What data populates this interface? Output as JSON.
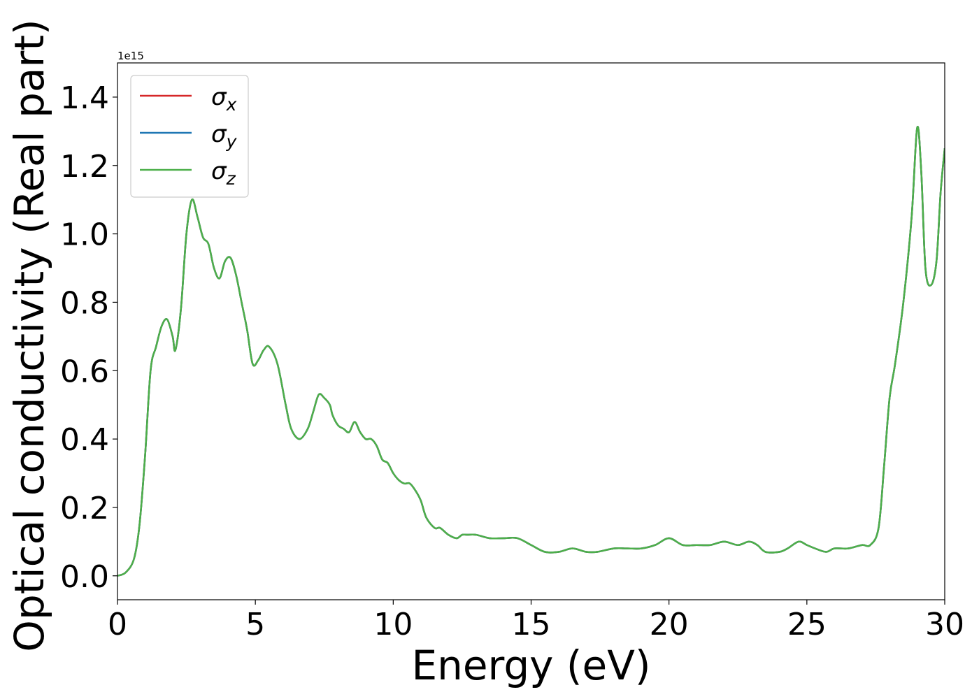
{
  "chart_data": {
    "type": "line",
    "title": "",
    "xlabel": "Energy (eV)",
    "ylabel": "Optical conductivity (Real part)",
    "offset_text": "1e15",
    "xlim": [
      0,
      30
    ],
    "ylim": [
      -0.07,
      1.5
    ],
    "x_ticks": [
      0,
      5,
      10,
      15,
      20,
      25,
      30
    ],
    "x_tick_labels": [
      "0",
      "5",
      "10",
      "15",
      "20",
      "25",
      "30"
    ],
    "y_ticks": [
      0.0,
      0.2,
      0.4,
      0.6,
      0.8,
      1.0,
      1.2,
      1.4
    ],
    "y_tick_labels": [
      "0.0",
      "0.2",
      "0.4",
      "0.6",
      "0.8",
      "1.0",
      "1.2",
      "1.4"
    ],
    "grid": false,
    "legend_position": "top-left",
    "x": [
      0,
      0.3,
      0.6,
      0.8,
      1.0,
      1.2,
      1.4,
      1.6,
      1.8,
      2.0,
      2.1,
      2.3,
      2.5,
      2.7,
      2.9,
      3.1,
      3.3,
      3.5,
      3.7,
      3.9,
      4.1,
      4.3,
      4.5,
      4.7,
      4.9,
      5.1,
      5.3,
      5.5,
      5.8,
      6.1,
      6.3,
      6.6,
      6.9,
      7.1,
      7.3,
      7.5,
      7.7,
      7.8,
      8.0,
      8.2,
      8.4,
      8.6,
      8.8,
      9.0,
      9.2,
      9.4,
      9.6,
      9.8,
      10.0,
      10.2,
      10.4,
      10.6,
      10.8,
      11.0,
      11.2,
      11.5,
      11.7,
      12.0,
      12.3,
      12.5,
      12.7,
      13.0,
      13.5,
      14.0,
      14.5,
      15.0,
      15.5,
      16.0,
      16.5,
      17.0,
      17.4,
      18.0,
      18.5,
      19.0,
      19.5,
      20.0,
      20.5,
      21.0,
      21.5,
      22.0,
      22.5,
      22.9,
      23.2,
      23.5,
      24.0,
      24.3,
      24.7,
      25.0,
      25.3,
      25.7,
      26.0,
      26.5,
      27.0,
      27.3,
      27.6,
      27.8,
      28.0,
      28.2,
      28.5,
      28.8,
      29.0,
      29.15,
      29.3,
      29.5,
      29.7,
      29.85,
      30.0
    ],
    "series": [
      {
        "name": "σ_x",
        "color": "#d62728",
        "values": [
          0.0,
          0.01,
          0.05,
          0.15,
          0.35,
          0.6,
          0.67,
          0.73,
          0.75,
          0.7,
          0.66,
          0.78,
          1.0,
          1.1,
          1.05,
          0.99,
          0.97,
          0.9,
          0.87,
          0.92,
          0.93,
          0.88,
          0.8,
          0.72,
          0.62,
          0.63,
          0.66,
          0.67,
          0.62,
          0.5,
          0.43,
          0.4,
          0.43,
          0.48,
          0.53,
          0.52,
          0.5,
          0.47,
          0.44,
          0.43,
          0.42,
          0.45,
          0.42,
          0.4,
          0.4,
          0.38,
          0.34,
          0.33,
          0.3,
          0.28,
          0.27,
          0.27,
          0.25,
          0.22,
          0.17,
          0.14,
          0.14,
          0.12,
          0.11,
          0.12,
          0.12,
          0.12,
          0.11,
          0.11,
          0.11,
          0.09,
          0.07,
          0.07,
          0.08,
          0.07,
          0.07,
          0.08,
          0.08,
          0.08,
          0.09,
          0.11,
          0.09,
          0.09,
          0.09,
          0.1,
          0.09,
          0.1,
          0.09,
          0.07,
          0.07,
          0.08,
          0.1,
          0.09,
          0.08,
          0.07,
          0.08,
          0.08,
          0.09,
          0.09,
          0.14,
          0.32,
          0.52,
          0.62,
          0.8,
          1.05,
          1.31,
          1.18,
          0.9,
          0.85,
          0.92,
          1.12,
          1.25
        ]
      },
      {
        "name": "σ_y",
        "color": "#1f77b4",
        "values": [
          0.0,
          0.01,
          0.05,
          0.15,
          0.35,
          0.6,
          0.67,
          0.73,
          0.75,
          0.7,
          0.66,
          0.78,
          1.0,
          1.1,
          1.05,
          0.99,
          0.97,
          0.9,
          0.87,
          0.92,
          0.93,
          0.88,
          0.8,
          0.72,
          0.62,
          0.63,
          0.66,
          0.67,
          0.62,
          0.5,
          0.43,
          0.4,
          0.43,
          0.48,
          0.53,
          0.52,
          0.5,
          0.47,
          0.44,
          0.43,
          0.42,
          0.45,
          0.42,
          0.4,
          0.4,
          0.38,
          0.34,
          0.33,
          0.3,
          0.28,
          0.27,
          0.27,
          0.25,
          0.22,
          0.17,
          0.14,
          0.14,
          0.12,
          0.11,
          0.12,
          0.12,
          0.12,
          0.11,
          0.11,
          0.11,
          0.09,
          0.07,
          0.07,
          0.08,
          0.07,
          0.07,
          0.08,
          0.08,
          0.08,
          0.09,
          0.11,
          0.09,
          0.09,
          0.09,
          0.1,
          0.09,
          0.1,
          0.09,
          0.07,
          0.07,
          0.08,
          0.1,
          0.09,
          0.08,
          0.07,
          0.08,
          0.08,
          0.09,
          0.09,
          0.14,
          0.32,
          0.52,
          0.62,
          0.8,
          1.05,
          1.31,
          1.18,
          0.9,
          0.85,
          0.92,
          1.12,
          1.25
        ]
      },
      {
        "name": "σ_z",
        "color": "#4daf4a",
        "values": [
          0.0,
          0.01,
          0.05,
          0.15,
          0.35,
          0.6,
          0.67,
          0.73,
          0.75,
          0.7,
          0.66,
          0.78,
          1.0,
          1.1,
          1.05,
          0.99,
          0.97,
          0.9,
          0.87,
          0.92,
          0.93,
          0.88,
          0.8,
          0.72,
          0.62,
          0.63,
          0.66,
          0.67,
          0.62,
          0.5,
          0.43,
          0.4,
          0.43,
          0.48,
          0.53,
          0.52,
          0.5,
          0.47,
          0.44,
          0.43,
          0.42,
          0.45,
          0.42,
          0.4,
          0.4,
          0.38,
          0.34,
          0.33,
          0.3,
          0.28,
          0.27,
          0.27,
          0.25,
          0.22,
          0.17,
          0.14,
          0.14,
          0.12,
          0.11,
          0.12,
          0.12,
          0.12,
          0.11,
          0.11,
          0.11,
          0.09,
          0.07,
          0.07,
          0.08,
          0.07,
          0.07,
          0.08,
          0.08,
          0.08,
          0.09,
          0.11,
          0.09,
          0.09,
          0.09,
          0.1,
          0.09,
          0.1,
          0.09,
          0.07,
          0.07,
          0.08,
          0.1,
          0.09,
          0.08,
          0.07,
          0.08,
          0.08,
          0.09,
          0.09,
          0.14,
          0.32,
          0.52,
          0.62,
          0.8,
          1.05,
          1.31,
          1.18,
          0.9,
          0.85,
          0.92,
          1.12,
          1.25
        ]
      }
    ],
    "legend": [
      {
        "symbol": "σ",
        "sub": "x",
        "color": "#d62728"
      },
      {
        "symbol": "σ",
        "sub": "y",
        "color": "#1f77b4"
      },
      {
        "symbol": "σ",
        "sub": "z",
        "color": "#4daf4a"
      }
    ]
  }
}
